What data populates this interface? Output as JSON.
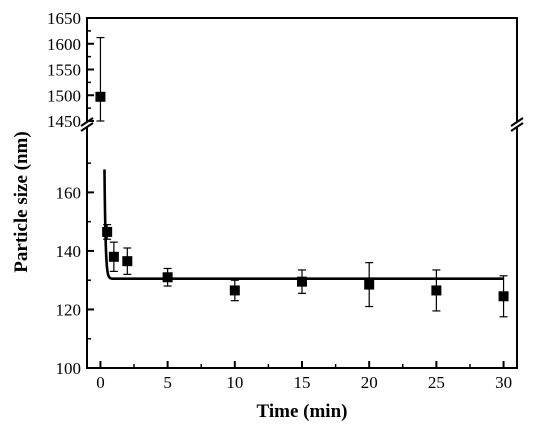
{
  "chart_data": {
    "type": "scatter",
    "title": "",
    "xlabel": "Time (min)",
    "ylabel": "Particle size (nm)",
    "xlim": [
      -1,
      31
    ],
    "ylim_lower": [
      100,
      182
    ],
    "ylim_upper": [
      1450,
      1650
    ],
    "y_axis_break": true,
    "x_ticks": [
      "0",
      "5",
      "10",
      "15",
      "20",
      "25",
      "30"
    ],
    "y_ticks_lower": [
      "100",
      "120",
      "140",
      "160"
    ],
    "y_ticks_upper": [
      "1450",
      "1500",
      "1550",
      "1600",
      "1650"
    ],
    "points": [
      {
        "x": 0,
        "y": 1497,
        "err": 115
      },
      {
        "x": 0.5,
        "y": 146.5,
        "err": 2.5
      },
      {
        "x": 1,
        "y": 138,
        "err": 5
      },
      {
        "x": 2,
        "y": 136.5,
        "err": 4.5
      },
      {
        "x": 5,
        "y": 131,
        "err": 3
      },
      {
        "x": 10,
        "y": 126.5,
        "err": 3.5
      },
      {
        "x": 15,
        "y": 129.5,
        "err": 4
      },
      {
        "x": 20,
        "y": 128.5,
        "err": 7.5
      },
      {
        "x": 25,
        "y": 126.5,
        "err": 7
      },
      {
        "x": 30,
        "y": 124.5,
        "err": 7
      }
    ],
    "fit_curve": {
      "plateau": 130.5,
      "initial": 1497,
      "rate_per_min": 12
    },
    "marker": "filled-square",
    "color": "#000000",
    "grid": false,
    "legend": false
  }
}
